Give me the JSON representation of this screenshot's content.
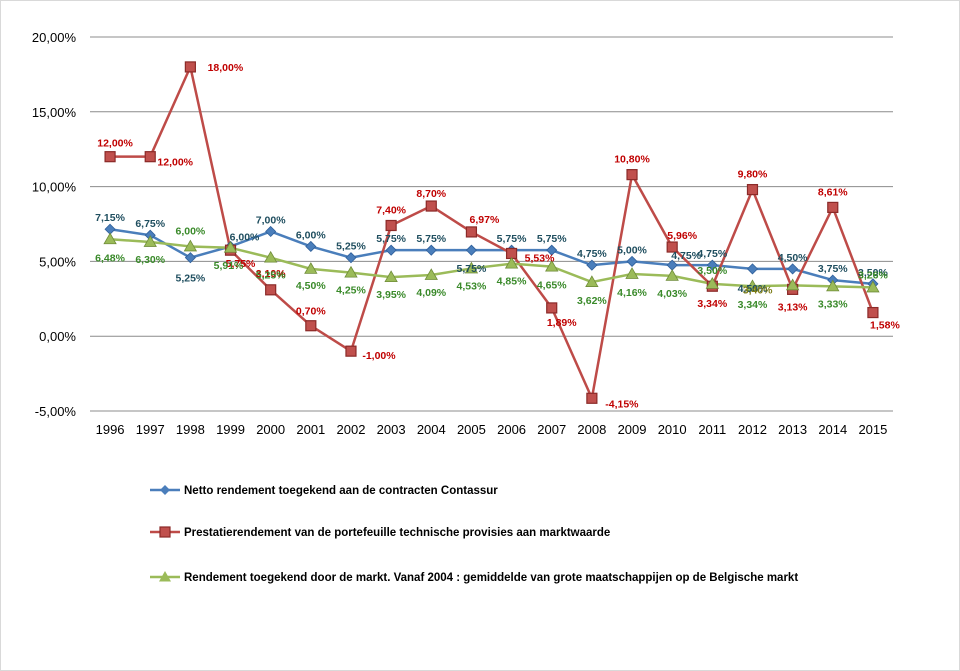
{
  "chart_data": {
    "type": "line",
    "title": "",
    "xlabel": "",
    "ylabel": "",
    "x": [
      "1996",
      "1997",
      "1998",
      "1999",
      "2000",
      "2001",
      "2002",
      "2003",
      "2004",
      "2005",
      "2006",
      "2007",
      "2008",
      "2009",
      "2010",
      "2011",
      "2012",
      "2013",
      "2014",
      "2015"
    ],
    "ylim": [
      -5,
      20
    ],
    "yticks": [
      -5,
      0,
      5,
      10,
      15,
      20
    ],
    "ytick_labels": [
      "-5,00%",
      "0,00%",
      "5,00%",
      "10,00%",
      "15,00%",
      "20,00%"
    ],
    "grid": true,
    "legend_position": "bottom",
    "series": [
      {
        "name": "Netto rendement toegekend aan de contracten Contassur",
        "color": "#4a7ebb",
        "label_color": "#1f4e5f",
        "marker": "diamond",
        "values": [
          7.15,
          6.75,
          5.25,
          6.0,
          7.0,
          6.0,
          5.25,
          5.75,
          5.75,
          5.75,
          5.75,
          5.75,
          4.75,
          5.0,
          4.75,
          4.75,
          4.5,
          4.5,
          3.75,
          3.5
        ],
        "labels": [
          "7,15%",
          "6,75%",
          "5,25%",
          "6,00%",
          "7,00%",
          "6,00%",
          "5,25%",
          "5,75%",
          "5,75%",
          "5,75%",
          "5,75%",
          "5,75%",
          "4,75%",
          "5,00%",
          "4,75%",
          "4,75%",
          "4,50%",
          "4,50%",
          "3,75%",
          "3,50%"
        ]
      },
      {
        "name": "Prestatierendement van de portefeuille technische provisies aan marktwaarde",
        "color": "#be4b48",
        "label_color": "#c00000",
        "marker": "square",
        "values": [
          12.0,
          12.0,
          18.0,
          5.75,
          3.1,
          0.7,
          -1.0,
          7.4,
          8.7,
          6.97,
          5.53,
          1.89,
          -4.15,
          10.8,
          5.96,
          3.34,
          9.8,
          3.13,
          8.61,
          1.58
        ],
        "labels": [
          "12,00%",
          "12,00%",
          "18,00%",
          "5,75%",
          "3,10%",
          "0,70%",
          "-1,00%",
          "7,40%",
          "8,70%",
          "6,97%",
          "5,53%",
          "1,89%",
          "-4,15%",
          "10,80%",
          "5,96%",
          "3,34%",
          "9,80%",
          "3,13%",
          "8,61%",
          "1,58%"
        ]
      },
      {
        "name": "Rendement toegekend door de markt.  Vanaf 2004 : gemiddelde van grote maatschappijen op de Belgische markt",
        "color": "#9bbb59",
        "label_color": "#3a8a2a",
        "marker": "triangle",
        "values": [
          6.48,
          6.3,
          6.0,
          5.91,
          5.25,
          4.5,
          4.25,
          3.95,
          4.09,
          4.53,
          4.85,
          4.65,
          3.62,
          4.16,
          4.03,
          3.5,
          3.34,
          3.4,
          3.33,
          3.26
        ],
        "labels": [
          "6,48%",
          "6,30%",
          "6,00%",
          "5,91%",
          "5,25%",
          "4,50%",
          "4,25%",
          "3,95%",
          "4,09%",
          "4,53%",
          "4,85%",
          "4,65%",
          "3,62%",
          "4,16%",
          "4,03%",
          "3,50%",
          "3,34%",
          "3,40%",
          "3,33%",
          "3,26%"
        ]
      }
    ]
  }
}
